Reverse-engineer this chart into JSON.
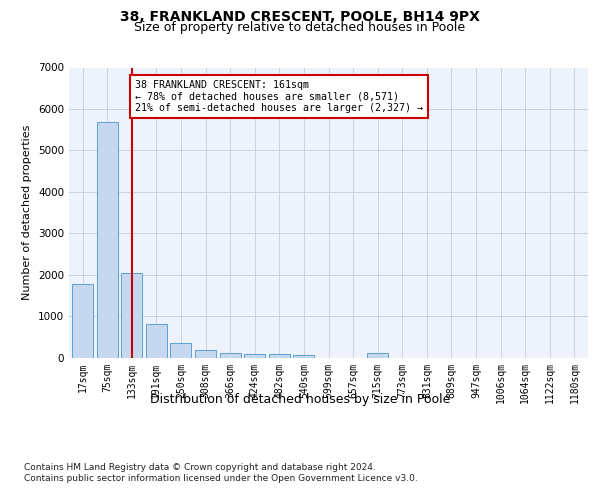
{
  "title1": "38, FRANKLAND CRESCENT, POOLE, BH14 9PX",
  "title2": "Size of property relative to detached houses in Poole",
  "xlabel": "Distribution of detached houses by size in Poole",
  "ylabel": "Number of detached properties",
  "bar_labels": [
    "17sqm",
    "75sqm",
    "133sqm",
    "191sqm",
    "250sqm",
    "308sqm",
    "366sqm",
    "424sqm",
    "482sqm",
    "540sqm",
    "599sqm",
    "657sqm",
    "715sqm",
    "773sqm",
    "831sqm",
    "889sqm",
    "947sqm",
    "1006sqm",
    "1064sqm",
    "1122sqm",
    "1180sqm"
  ],
  "bar_values": [
    1780,
    5680,
    2030,
    800,
    340,
    175,
    105,
    90,
    85,
    60,
    0,
    0,
    100,
    0,
    0,
    0,
    0,
    0,
    0,
    0,
    0
  ],
  "bar_color": "#c5d8f0",
  "bar_edge_color": "#5a9fd4",
  "vline_x_index": 2,
  "vline_color": "#cc0000",
  "ylim": [
    0,
    7000
  ],
  "yticks": [
    0,
    1000,
    2000,
    3000,
    4000,
    5000,
    6000,
    7000
  ],
  "annotation_text": "38 FRANKLAND CRESCENT: 161sqm\n← 78% of detached houses are smaller (8,571)\n21% of semi-detached houses are larger (2,327) →",
  "annotation_box_color": "#ffffff",
  "annotation_border_color": "#cc0000",
  "footer1": "Contains HM Land Registry data © Crown copyright and database right 2024.",
  "footer2": "Contains public sector information licensed under the Open Government Licence v3.0.",
  "bg_color": "#eef2fb",
  "grid_color": "#c8d0e0",
  "title1_fontsize": 10,
  "title2_fontsize": 9,
  "ylabel_fontsize": 8,
  "xlabel_fontsize": 9,
  "tick_fontsize": 7,
  "footer_fontsize": 6.5
}
